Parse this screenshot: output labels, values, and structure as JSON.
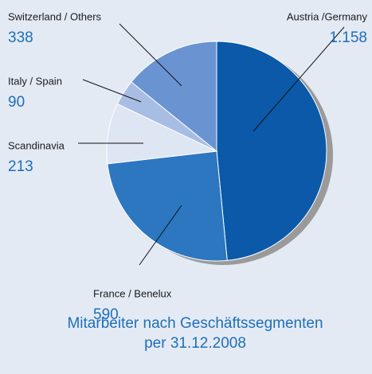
{
  "chart_data": {
    "type": "pie",
    "title": "Mitarbeiter nach Geschäftssegmenten per 31.12.2008",
    "categories": [
      "Austria /Germany",
      "France / Benelux",
      "Scandinavia",
      "Italy / Spain",
      "Switzerland / Others"
    ],
    "values": [
      1158,
      590,
      213,
      90,
      338
    ],
    "value_labels": [
      "1.158",
      "590",
      "213",
      "90",
      "338"
    ],
    "colors": [
      "#0b59a8",
      "#2c77c0",
      "#dee5f3",
      "#a8bde4",
      "#6a93d1"
    ]
  }
}
